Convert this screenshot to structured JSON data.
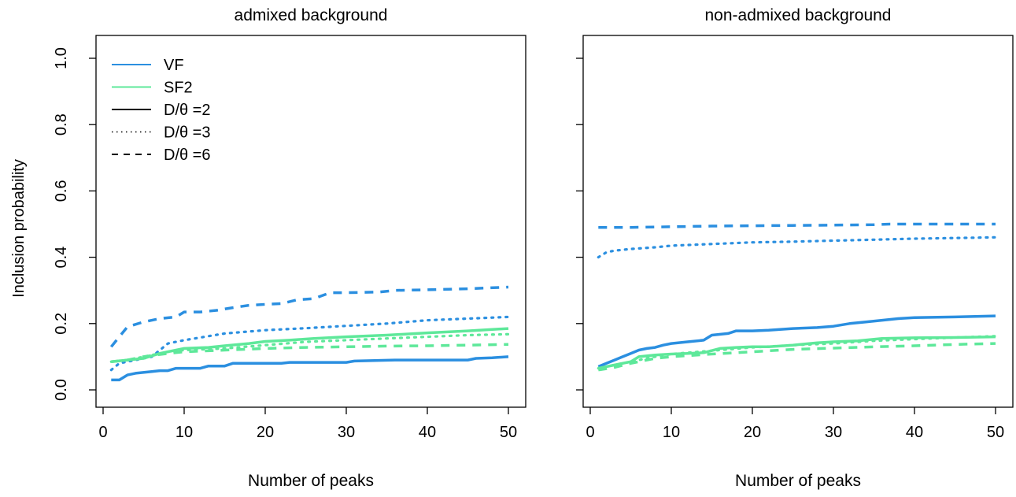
{
  "figure": {
    "ylabel": "Inclusion probability",
    "colors": {
      "VF": "#2b8fe0",
      "SF2": "#5ee89a",
      "axis": "#000000"
    }
  },
  "legend": {
    "placement": "top-left",
    "entries": [
      {
        "label": "VF",
        "color": "#2b8fe0",
        "style": "solid"
      },
      {
        "label": "SF2",
        "color": "#5ee89a",
        "style": "solid"
      },
      {
        "label": "D/θ =2",
        "color": "#000000",
        "style": "solid"
      },
      {
        "label": "D/θ =3",
        "color": "#000000",
        "style": "dotted"
      },
      {
        "label": "D/θ =6",
        "color": "#000000",
        "style": "dashed"
      }
    ]
  },
  "chart_data": [
    {
      "type": "line",
      "title": "admixed background",
      "xlabel": "Number of peaks",
      "ylabel": "Inclusion probability",
      "xlim": [
        1,
        50
      ],
      "ylim": [
        0,
        1
      ],
      "xticks": [
        0,
        10,
        20,
        30,
        40,
        50
      ],
      "yticks": [
        "0.0",
        "0.2",
        "0.4",
        "0.6",
        "0.8",
        "1.0"
      ],
      "grid": false,
      "series": [
        {
          "name": "VF",
          "condition": "D/θ =2",
          "style": "solid",
          "color": "#2b8fe0",
          "x": [
            1,
            2,
            3,
            4,
            6,
            7,
            8,
            9,
            10,
            12,
            13,
            15,
            16,
            22,
            23,
            30,
            31,
            36,
            45,
            46,
            48,
            50
          ],
          "y": [
            0.03,
            0.03,
            0.045,
            0.05,
            0.055,
            0.058,
            0.058,
            0.065,
            0.065,
            0.065,
            0.072,
            0.072,
            0.08,
            0.08,
            0.083,
            0.083,
            0.087,
            0.09,
            0.09,
            0.095,
            0.097,
            0.1
          ]
        },
        {
          "name": "VF",
          "condition": "D/θ =3",
          "style": "dotted",
          "color": "#2b8fe0",
          "x": [
            1,
            2,
            4,
            6,
            8,
            10,
            12,
            15,
            20,
            25,
            30,
            35,
            40,
            45,
            50
          ],
          "y": [
            0.06,
            0.08,
            0.09,
            0.1,
            0.14,
            0.15,
            0.158,
            0.17,
            0.18,
            0.186,
            0.193,
            0.2,
            0.21,
            0.215,
            0.22
          ]
        },
        {
          "name": "VF",
          "condition": "D/θ =6",
          "style": "dashed",
          "color": "#2b8fe0",
          "x": [
            1,
            2,
            3,
            5,
            7,
            9,
            10,
            12,
            14,
            16,
            18,
            20,
            22,
            24,
            26,
            28,
            30,
            34,
            36,
            40,
            45,
            50
          ],
          "y": [
            0.13,
            0.16,
            0.19,
            0.205,
            0.215,
            0.22,
            0.235,
            0.235,
            0.24,
            0.248,
            0.255,
            0.258,
            0.26,
            0.272,
            0.275,
            0.293,
            0.293,
            0.295,
            0.3,
            0.302,
            0.305,
            0.31
          ]
        },
        {
          "name": "SF2",
          "condition": "D/θ =2",
          "style": "solid",
          "color": "#5ee89a",
          "x": [
            1,
            3,
            5,
            7,
            9,
            10,
            13,
            15,
            18,
            20,
            23,
            26,
            30,
            35,
            40,
            45,
            50
          ],
          "y": [
            0.085,
            0.09,
            0.095,
            0.11,
            0.12,
            0.125,
            0.128,
            0.133,
            0.14,
            0.146,
            0.15,
            0.155,
            0.16,
            0.165,
            0.172,
            0.178,
            0.185
          ]
        },
        {
          "name": "SF2",
          "condition": "D/θ =3",
          "style": "dotted",
          "color": "#5ee89a",
          "x": [
            1,
            3,
            5,
            8,
            10,
            15,
            20,
            25,
            30,
            35,
            40,
            45,
            50
          ],
          "y": [
            0.085,
            0.09,
            0.1,
            0.115,
            0.12,
            0.125,
            0.135,
            0.145,
            0.15,
            0.155,
            0.16,
            0.165,
            0.168
          ]
        },
        {
          "name": "SF2",
          "condition": "D/θ =6",
          "style": "dashed",
          "color": "#5ee89a",
          "x": [
            1,
            3,
            5,
            8,
            10,
            15,
            20,
            25,
            30,
            35,
            40,
            45,
            50
          ],
          "y": [
            0.085,
            0.09,
            0.1,
            0.11,
            0.115,
            0.12,
            0.125,
            0.128,
            0.13,
            0.132,
            0.133,
            0.135,
            0.137
          ]
        }
      ]
    },
    {
      "type": "line",
      "title": "non-admixed background",
      "xlabel": "Number of peaks",
      "ylabel": "Inclusion probability",
      "xlim": [
        1,
        50
      ],
      "ylim": [
        0,
        1
      ],
      "xticks": [
        0,
        10,
        20,
        30,
        40,
        50
      ],
      "yticks": [
        "0.0",
        "0.2",
        "0.4",
        "0.6",
        "0.8",
        "1.0"
      ],
      "grid": false,
      "series": [
        {
          "name": "VF",
          "condition": "D/θ =2",
          "style": "solid",
          "color": "#2b8fe0",
          "x": [
            1,
            2,
            3,
            4,
            5,
            6,
            7,
            8,
            9,
            10,
            12,
            14,
            15,
            17,
            18,
            20,
            22,
            25,
            28,
            30,
            32,
            34,
            36,
            38,
            40,
            45,
            50
          ],
          "y": [
            0.07,
            0.08,
            0.09,
            0.1,
            0.11,
            0.12,
            0.125,
            0.128,
            0.135,
            0.14,
            0.145,
            0.15,
            0.165,
            0.17,
            0.178,
            0.178,
            0.18,
            0.185,
            0.188,
            0.192,
            0.2,
            0.205,
            0.21,
            0.215,
            0.218,
            0.22,
            0.223
          ]
        },
        {
          "name": "VF",
          "condition": "D/θ =3",
          "style": "dotted",
          "color": "#2b8fe0",
          "x": [
            1,
            2,
            3,
            5,
            8,
            10,
            15,
            20,
            25,
            30,
            35,
            40,
            45,
            50
          ],
          "y": [
            0.4,
            0.415,
            0.42,
            0.425,
            0.43,
            0.435,
            0.44,
            0.445,
            0.447,
            0.45,
            0.453,
            0.456,
            0.458,
            0.46
          ]
        },
        {
          "name": "VF",
          "condition": "D/θ =6",
          "style": "dashed",
          "color": "#2b8fe0",
          "x": [
            1,
            5,
            10,
            15,
            20,
            25,
            30,
            35,
            37,
            40,
            45,
            50
          ],
          "y": [
            0.49,
            0.49,
            0.492,
            0.494,
            0.495,
            0.496,
            0.497,
            0.498,
            0.5,
            0.5,
            0.5,
            0.5
          ]
        },
        {
          "name": "SF2",
          "condition": "D/θ =2",
          "style": "solid",
          "color": "#5ee89a",
          "x": [
            1,
            3,
            5,
            6,
            8,
            10,
            12,
            14,
            16,
            18,
            20,
            22,
            25,
            28,
            30,
            33,
            36,
            40,
            45,
            50
          ],
          "y": [
            0.065,
            0.075,
            0.085,
            0.1,
            0.105,
            0.108,
            0.11,
            0.112,
            0.125,
            0.128,
            0.13,
            0.13,
            0.135,
            0.142,
            0.145,
            0.148,
            0.155,
            0.157,
            0.158,
            0.16
          ]
        },
        {
          "name": "SF2",
          "condition": "D/θ =3",
          "style": "dotted",
          "color": "#5ee89a",
          "x": [
            1,
            3,
            5,
            8,
            10,
            15,
            20,
            25,
            30,
            35,
            40,
            45,
            50
          ],
          "y": [
            0.065,
            0.075,
            0.085,
            0.1,
            0.108,
            0.118,
            0.128,
            0.135,
            0.14,
            0.148,
            0.153,
            0.158,
            0.162
          ]
        },
        {
          "name": "SF2",
          "condition": "D/θ =6",
          "style": "dashed",
          "color": "#5ee89a",
          "x": [
            1,
            3,
            5,
            8,
            10,
            15,
            20,
            25,
            30,
            35,
            40,
            45,
            50
          ],
          "y": [
            0.06,
            0.068,
            0.08,
            0.095,
            0.1,
            0.108,
            0.115,
            0.122,
            0.126,
            0.13,
            0.133,
            0.137,
            0.14
          ]
        }
      ]
    }
  ]
}
